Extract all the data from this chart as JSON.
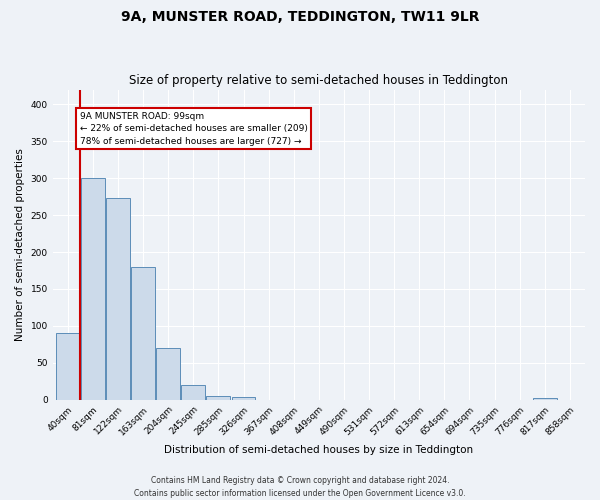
{
  "title1": "9A, MUNSTER ROAD, TEDDINGTON, TW11 9LR",
  "title2": "Size of property relative to semi-detached houses in Teddington",
  "xlabel": "Distribution of semi-detached houses by size in Teddington",
  "ylabel": "Number of semi-detached properties",
  "bin_labels": [
    "40sqm",
    "81sqm",
    "122sqm",
    "163sqm",
    "204sqm",
    "245sqm",
    "285sqm",
    "326sqm",
    "367sqm",
    "408sqm",
    "449sqm",
    "490sqm",
    "531sqm",
    "572sqm",
    "613sqm",
    "654sqm",
    "694sqm",
    "735sqm",
    "776sqm",
    "817sqm",
    "858sqm"
  ],
  "bar_values": [
    90,
    300,
    273,
    180,
    70,
    20,
    5,
    4,
    0,
    0,
    0,
    0,
    0,
    0,
    0,
    0,
    0,
    0,
    0,
    3,
    0
  ],
  "bar_color": "#ccdaea",
  "bar_edge_color": "#5b8db8",
  "vline_color": "#cc0000",
  "vline_x_bin": 1,
  "annotation_title": "9A MUNSTER ROAD: 99sqm",
  "annotation_line1": "← 22% of semi-detached houses are smaller (209)",
  "annotation_line2": "78% of semi-detached houses are larger (727) →",
  "annotation_box_color": "#ffffff",
  "annotation_box_edge": "#cc0000",
  "ylim": [
    0,
    420
  ],
  "yticks": [
    0,
    50,
    100,
    150,
    200,
    250,
    300,
    350,
    400
  ],
  "footer1": "Contains HM Land Registry data © Crown copyright and database right 2024.",
  "footer2": "Contains public sector information licensed under the Open Government Licence v3.0.",
  "bg_color": "#eef2f7",
  "grid_color": "#ffffff",
  "title1_fontsize": 10,
  "title2_fontsize": 8.5,
  "axis_label_fontsize": 7.5,
  "tick_fontsize": 6.5,
  "footer_fontsize": 5.5
}
